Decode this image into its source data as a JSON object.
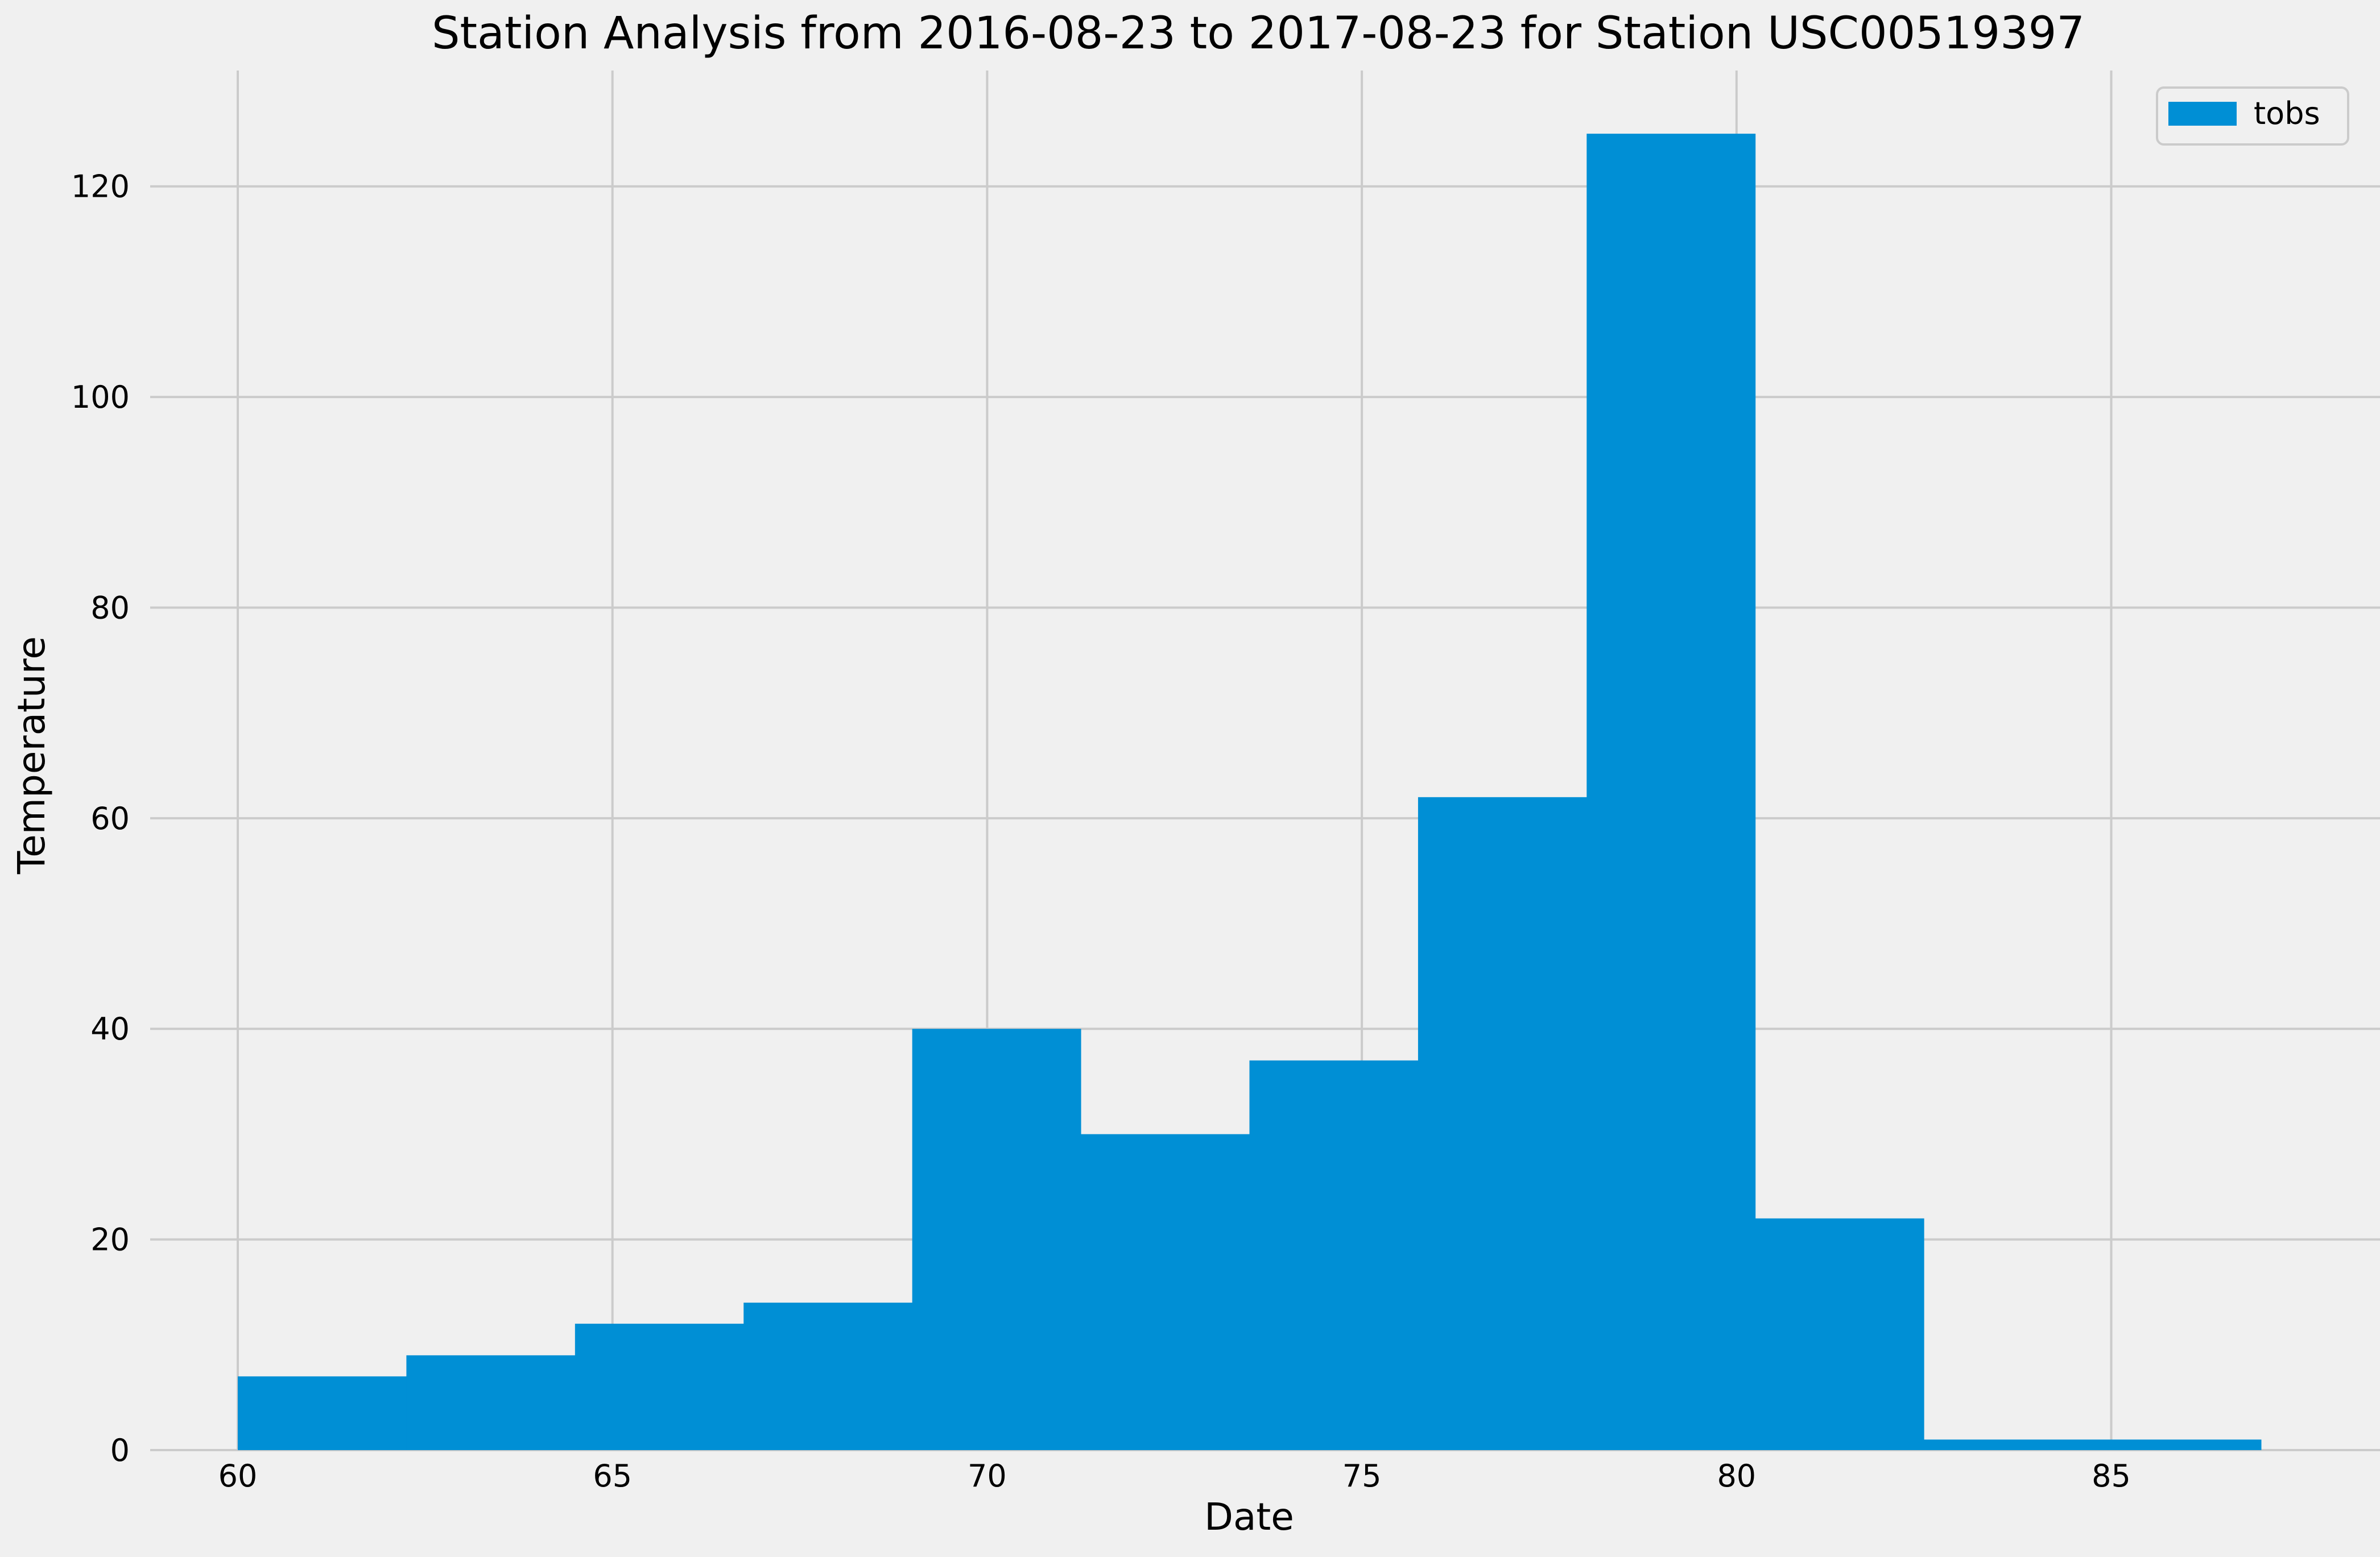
{
  "chart_data": {
    "type": "bar",
    "title": "Station Analysis from 2016-08-23 to 2017-08-23 for Station USC00519397",
    "xlabel": "Date",
    "ylabel": "Temperature",
    "xlim": [
      60,
      87
    ],
    "ylim": [
      0,
      131
    ],
    "x_ticks": [
      60,
      65,
      70,
      75,
      80,
      85
    ],
    "y_ticks": [
      0,
      20,
      40,
      60,
      80,
      100,
      120
    ],
    "grid": true,
    "legend_position": "top-right",
    "bin_edges": [
      60,
      62.25,
      64.5,
      66.75,
      69,
      71.25,
      73.5,
      75.75,
      78,
      80.25,
      82.5,
      84.75,
      87
    ],
    "series": [
      {
        "name": "tobs",
        "color": "#008fd5",
        "values": [
          7,
          9,
          12,
          14,
          40,
          30,
          37,
          62,
          125,
          22,
          1,
          1
        ]
      }
    ]
  },
  "colors": {
    "background": "#f0f0f0",
    "grid": "#cbcbcb",
    "bar": "#008fd5",
    "text": "#000000"
  }
}
